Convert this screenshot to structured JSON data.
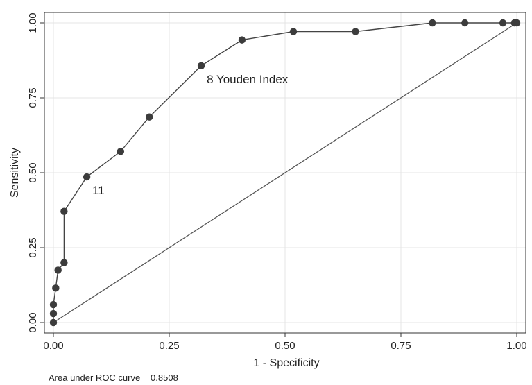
{
  "chart_data": {
    "type": "line",
    "xlabel": "1 - Specificity",
    "ylabel": "Sensitivity",
    "xlim": [
      0,
      1
    ],
    "ylim": [
      0,
      1
    ],
    "xticks": [
      "0.00",
      "0.25",
      "0.50",
      "0.75",
      "1.00"
    ],
    "yticks": [
      "0.00",
      "0.25",
      "0.50",
      "0.75",
      "1.00"
    ],
    "grid": true,
    "series": [
      {
        "values": [
          {
            "x": 0.0,
            "y": 0.0
          },
          {
            "x": 0.0,
            "y": 0.03
          },
          {
            "x": 0.0,
            "y": 0.06
          },
          {
            "x": 0.005,
            "y": 0.115
          },
          {
            "x": 0.01,
            "y": 0.175
          },
          {
            "x": 0.023,
            "y": 0.2
          },
          {
            "x": 0.023,
            "y": 0.371
          },
          {
            "x": 0.072,
            "y": 0.486
          },
          {
            "x": 0.145,
            "y": 0.571
          },
          {
            "x": 0.207,
            "y": 0.686
          },
          {
            "x": 0.319,
            "y": 0.857
          },
          {
            "x": 0.407,
            "y": 0.943
          },
          {
            "x": 0.518,
            "y": 0.971
          },
          {
            "x": 0.652,
            "y": 0.971
          },
          {
            "x": 0.818,
            "y": 1.0
          },
          {
            "x": 0.888,
            "y": 1.0
          },
          {
            "x": 0.97,
            "y": 1.0
          },
          {
            "x": 0.995,
            "y": 1.0
          },
          {
            "x": 1.0,
            "y": 1.0
          }
        ]
      }
    ],
    "reference_line": [
      {
        "x": 0,
        "y": 0
      },
      {
        "x": 1,
        "y": 1
      }
    ],
    "annotations": [
      {
        "text": "8 Youden Index",
        "x": 0.319,
        "y": 0.857
      },
      {
        "text": "11",
        "x": 0.072,
        "y": 0.486
      }
    ],
    "note": "Area under ROC curve = 0.8508"
  }
}
